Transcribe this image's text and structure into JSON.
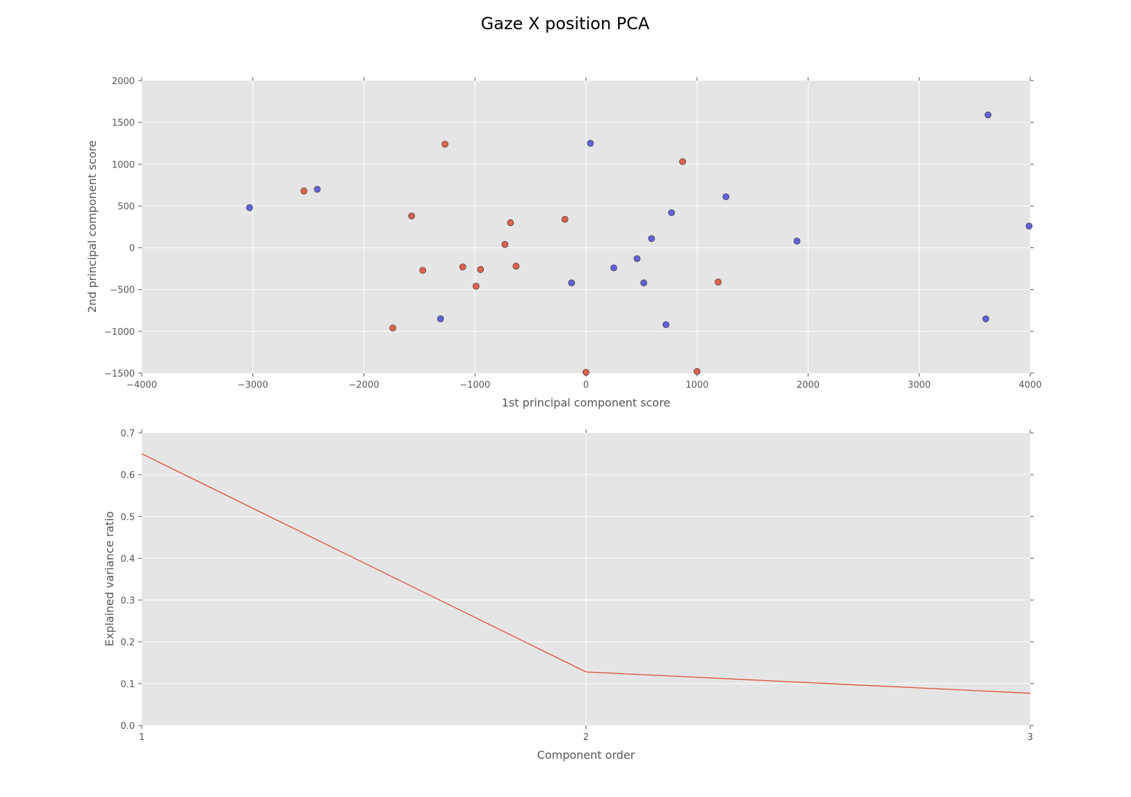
{
  "title": "Gaze X position PCA",
  "colors": {
    "axes_bg": "#e5e5e5",
    "grid": "#ffffff",
    "series_red": "#e24a33",
    "series_blue": "#4b4bdd",
    "line": "#e24a33",
    "tick": "#555555"
  },
  "chart_data": [
    {
      "type": "scatter",
      "xlabel": "1st principal component score",
      "ylabel": "2nd principal component score",
      "xlim": [
        -4000,
        4000
      ],
      "ylim": [
        -1500,
        2000
      ],
      "xticks": [
        -4000,
        -3000,
        -2000,
        -1000,
        0,
        1000,
        2000,
        3000,
        4000
      ],
      "yticks": [
        -1500,
        -1000,
        -500,
        0,
        500,
        1000,
        1500,
        2000
      ],
      "xtick_labels": [
        "−4000",
        "−3000",
        "−2000",
        "−1000",
        "0",
        "1000",
        "2000",
        "3000",
        "4000"
      ],
      "ytick_labels": [
        "−1500",
        "−1000",
        "−500",
        "0",
        "500",
        "1000",
        "1500",
        "2000"
      ],
      "grid": true,
      "series": [
        {
          "color": "#e24a33",
          "points": [
            {
              "x": -2540,
              "y": 680
            },
            {
              "x": -1270,
              "y": 1240
            },
            {
              "x": -1570,
              "y": 380
            },
            {
              "x": -1470,
              "y": -270
            },
            {
              "x": -1740,
              "y": -960
            },
            {
              "x": -1110,
              "y": -230
            },
            {
              "x": -950,
              "y": -260
            },
            {
              "x": -990,
              "y": -460
            },
            {
              "x": -680,
              "y": 300
            },
            {
              "x": -730,
              "y": 40
            },
            {
              "x": -630,
              "y": -220
            },
            {
              "x": -190,
              "y": 340
            },
            {
              "x": 870,
              "y": 1030
            },
            {
              "x": 1190,
              "y": -410
            },
            {
              "x": 0,
              "y": -1490
            },
            {
              "x": 1000,
              "y": -1480
            }
          ]
        },
        {
          "color": "#4b4bdd",
          "points": [
            {
              "x": -3030,
              "y": 480
            },
            {
              "x": -2420,
              "y": 700
            },
            {
              "x": -1310,
              "y": -850
            },
            {
              "x": 40,
              "y": 1250
            },
            {
              "x": -130,
              "y": -420
            },
            {
              "x": 250,
              "y": -240
            },
            {
              "x": 460,
              "y": -130
            },
            {
              "x": 520,
              "y": -420
            },
            {
              "x": 590,
              "y": 110
            },
            {
              "x": 770,
              "y": 420
            },
            {
              "x": 720,
              "y": -920
            },
            {
              "x": 1260,
              "y": 610
            },
            {
              "x": 1900,
              "y": 80
            },
            {
              "x": 3620,
              "y": 1590
            },
            {
              "x": 3600,
              "y": -850
            },
            {
              "x": 3990,
              "y": 260
            }
          ]
        }
      ]
    },
    {
      "type": "line",
      "xlabel": "Component order",
      "ylabel": "Explained variance ratio",
      "xlim": [
        1,
        3
      ],
      "ylim": [
        0,
        0.7
      ],
      "xticks": [
        1,
        2,
        3
      ],
      "yticks": [
        0,
        0.1,
        0.2,
        0.3,
        0.4,
        0.5,
        0.6,
        0.7
      ],
      "xtick_labels": [
        "1",
        "2",
        "3"
      ],
      "ytick_labels": [
        "0.0",
        "0.1",
        "0.2",
        "0.3",
        "0.4",
        "0.5",
        "0.6",
        "0.7"
      ],
      "grid": true,
      "series": [
        {
          "color": "#e24a33",
          "x": [
            1,
            2,
            3
          ],
          "y": [
            0.65,
            0.128,
            0.077
          ]
        }
      ]
    }
  ]
}
